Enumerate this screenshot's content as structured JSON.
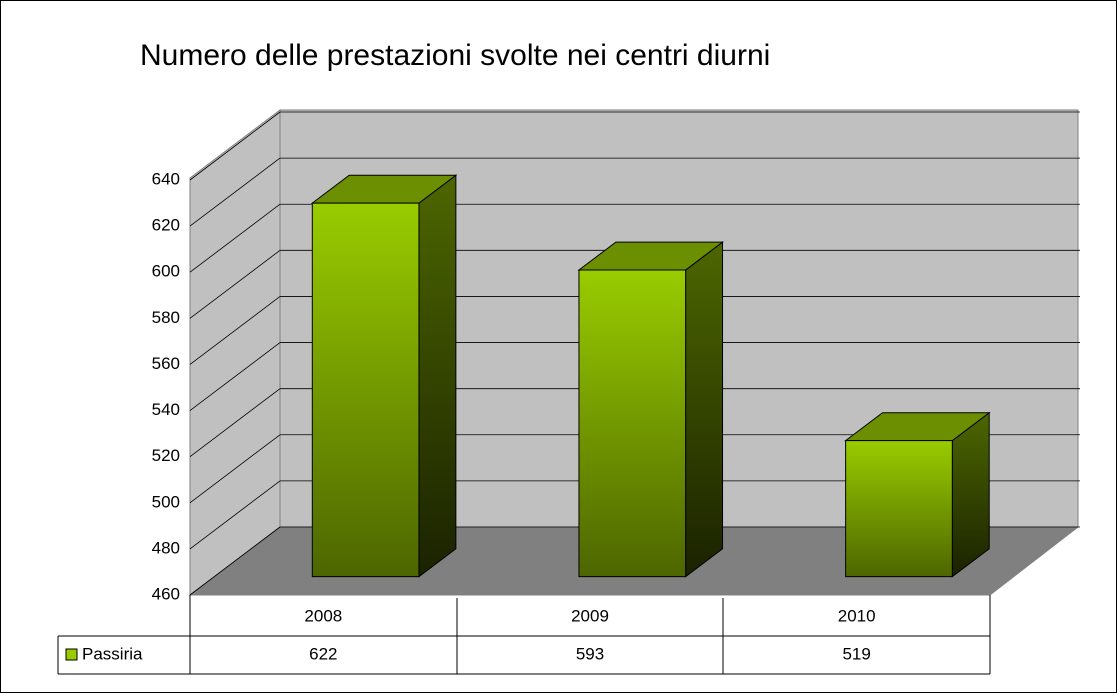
{
  "chart_data": {
    "type": "bar3d",
    "title": "Numero delle prestazioni svolte nei centri diurni",
    "categories": [
      "2008",
      "2009",
      "2010"
    ],
    "series": [
      {
        "name": "Passiria",
        "color": "#99cc00",
        "values": [
          622,
          593,
          519
        ]
      }
    ],
    "ylim": [
      460,
      640
    ],
    "yticks": [
      460,
      480,
      500,
      520,
      540,
      560,
      580,
      600,
      620,
      640
    ],
    "grid": true
  }
}
